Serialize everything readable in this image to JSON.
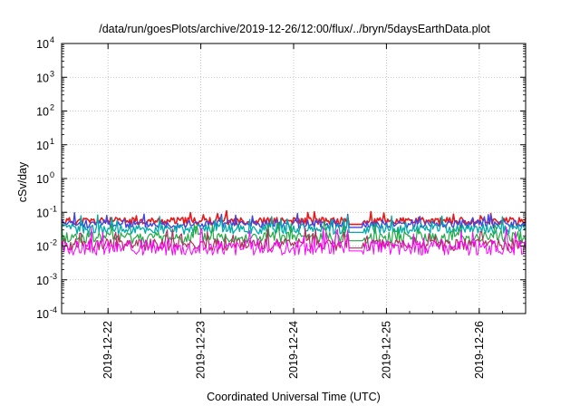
{
  "chart_data": {
    "type": "line",
    "title": "/data/run/goesPlots/archive/2019-12-26/12:00/flux/../bryn/5daysEarthData.plot",
    "xlabel": "Coordinated Universal Time (UTC)",
    "ylabel": "cSv/day",
    "yscale": "log",
    "ylim": [
      0.0001,
      10000
    ],
    "y_ticks": [
      {
        "base": "10",
        "exp": "-4",
        "value": 0.0001
      },
      {
        "base": "10",
        "exp": "-3",
        "value": 0.001
      },
      {
        "base": "10",
        "exp": "-2",
        "value": 0.01
      },
      {
        "base": "10",
        "exp": "-1",
        "value": 0.1
      },
      {
        "base": "10",
        "exp": "0",
        "value": 1
      },
      {
        "base": "10",
        "exp": "1",
        "value": 10
      },
      {
        "base": "10",
        "exp": "2",
        "value": 100
      },
      {
        "base": "10",
        "exp": "3",
        "value": 1000
      },
      {
        "base": "10",
        "exp": "4",
        "value": 10000
      }
    ],
    "xlim": [
      "2019-12-21T12:00",
      "2019-12-26T12:00"
    ],
    "x_ticks": [
      "2019-12-22",
      "2019-12-23",
      "2019-12-24",
      "2019-12-25",
      "2019-12-26"
    ],
    "grid": true,
    "series": [
      {
        "color": "#e41a1c",
        "level": 0.055,
        "spread": 0.22,
        "seed": 11,
        "width": 1.6
      },
      {
        "color": "#4444dd",
        "level": 0.045,
        "spread": 0.25,
        "seed": 23,
        "width": 1.4
      },
      {
        "color": "#00aaaa",
        "level": 0.032,
        "spread": 0.3,
        "seed": 37,
        "width": 1.3
      },
      {
        "color": "#22aa44",
        "level": 0.018,
        "spread": 0.35,
        "seed": 41,
        "width": 1.2
      },
      {
        "color": "#b03060",
        "level": 0.011,
        "spread": 0.35,
        "seed": 53,
        "width": 1.2
      },
      {
        "color": "#ff00ff",
        "level": 0.009,
        "spread": 0.45,
        "seed": 67,
        "width": 1.0
      }
    ]
  }
}
